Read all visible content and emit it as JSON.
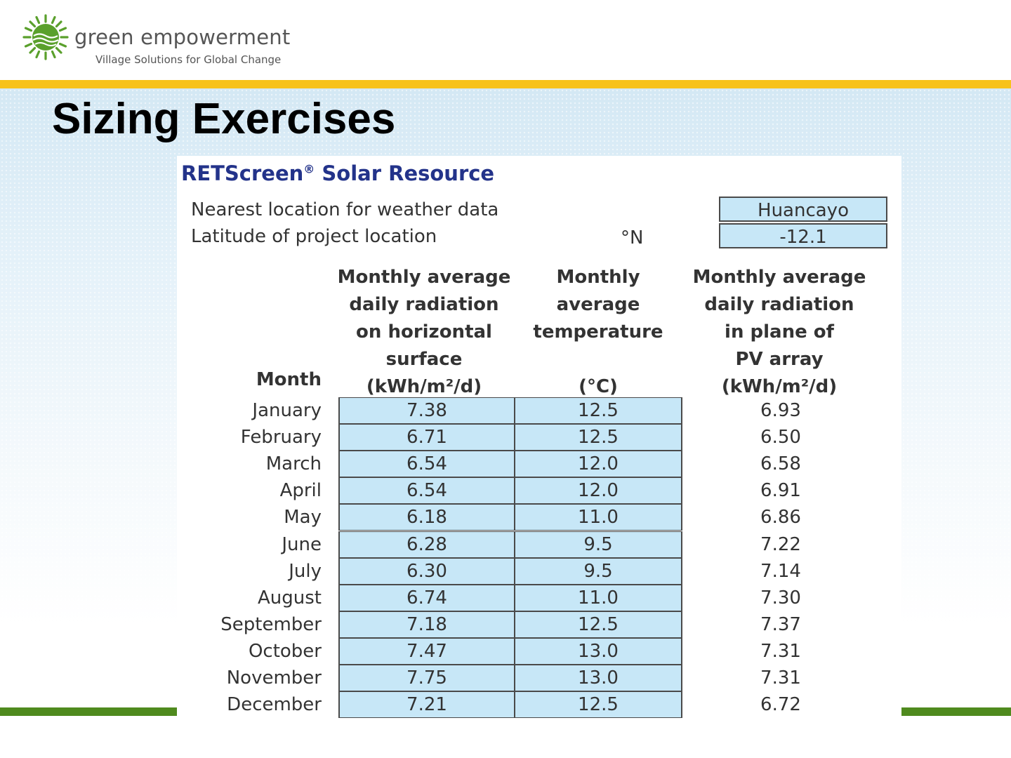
{
  "brand": {
    "name": "green empowerment",
    "tagline": "Village Solutions for Global Change",
    "logo_icon": "sun-wave-logo-icon",
    "colors": {
      "green": "#4f8a1e",
      "gold": "#f7c21b",
      "navy": "#23338a",
      "cell_blue": "#c7e7f7"
    }
  },
  "slide": {
    "title": "Sizing Exercises"
  },
  "sheet": {
    "title": "RETScreen",
    "title_mark": "®",
    "title_rest": " Solar Resource",
    "location_label": "Nearest location for weather data",
    "location_value": "Huancayo",
    "latitude_label": "Latitude of project location",
    "latitude_unit": "°N",
    "latitude_value": "-12.1",
    "headers": {
      "month": "Month",
      "radiation_horizontal": [
        "Monthly average",
        "daily radiation",
        "on horizontal",
        "surface",
        "(kWh/m²/d)"
      ],
      "temperature": [
        "Monthly",
        "average",
        "temperature",
        "",
        "(°C)"
      ],
      "radiation_pv": [
        "Monthly average",
        "daily radiation",
        "in plane of",
        "PV array",
        "(kWh/m²/d)"
      ]
    },
    "rows": [
      {
        "month": "January",
        "radiation_horizontal": "7.38",
        "temperature": "12.5",
        "radiation_pv": "6.93"
      },
      {
        "month": "February",
        "radiation_horizontal": "6.71",
        "temperature": "12.5",
        "radiation_pv": "6.50"
      },
      {
        "month": "March",
        "radiation_horizontal": "6.54",
        "temperature": "12.0",
        "radiation_pv": "6.58"
      },
      {
        "month": "April",
        "radiation_horizontal": "6.54",
        "temperature": "12.0",
        "radiation_pv": "6.91"
      },
      {
        "month": "May",
        "radiation_horizontal": "6.18",
        "temperature": "11.0",
        "radiation_pv": "6.86"
      },
      {
        "month": "June",
        "radiation_horizontal": "6.28",
        "temperature": "9.5",
        "radiation_pv": "7.22"
      },
      {
        "month": "July",
        "radiation_horizontal": "6.30",
        "temperature": "9.5",
        "radiation_pv": "7.14"
      },
      {
        "month": "August",
        "radiation_horizontal": "6.74",
        "temperature": "11.0",
        "radiation_pv": "7.30"
      },
      {
        "month": "September",
        "radiation_horizontal": "7.18",
        "temperature": "12.5",
        "radiation_pv": "7.37"
      },
      {
        "month": "October",
        "radiation_horizontal": "7.47",
        "temperature": "13.0",
        "radiation_pv": "7.31"
      },
      {
        "month": "November",
        "radiation_horizontal": "7.75",
        "temperature": "13.0",
        "radiation_pv": "7.31"
      },
      {
        "month": "December",
        "radiation_horizontal": "7.21",
        "temperature": "12.5",
        "radiation_pv": "6.72"
      }
    ]
  }
}
